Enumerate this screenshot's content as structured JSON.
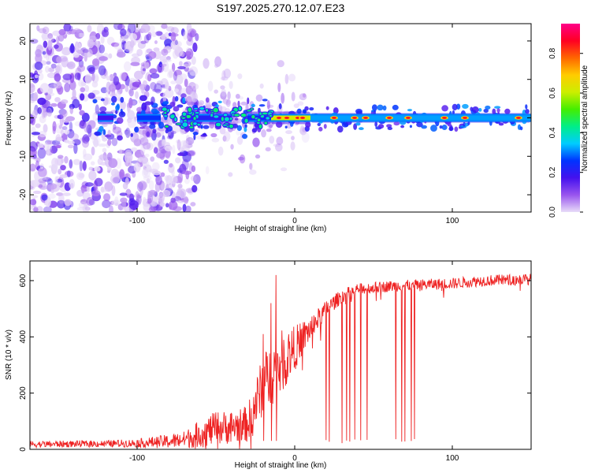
{
  "title": "S197.2025.270.12.07.E23",
  "chart_data": [
    {
      "type": "heatmap",
      "name": "spectrogram",
      "xlabel": "Height of straight line (km)",
      "ylabel": "Frequency (Hz)",
      "xlim": [
        -168,
        150
      ],
      "ylim": [
        -24.5,
        24.5
      ],
      "xticks": [
        -100,
        0,
        100
      ],
      "yticks": [
        -20,
        -10,
        0,
        10,
        20
      ],
      "colorbar": {
        "label": "Normalized spectral amplitude",
        "range": [
          0.0,
          0.95
        ],
        "ticks": [
          0.0,
          0.2,
          0.4,
          0.6,
          0.8
        ],
        "colors": [
          "#e8dcf8",
          "#9955ee",
          "#4411ee",
          "#0033ff",
          "#00ccff",
          "#00ee88",
          "#44ee00",
          "#ccee00",
          "#ffcc00",
          "#ff6600",
          "#ff0022",
          "#ff0088"
        ]
      },
      "band_segments": [
        {
          "x_from": -125,
          "x_to": -115,
          "amplitude": 0.25
        },
        {
          "x_from": -100,
          "x_to": -85,
          "amplitude": 0.35
        },
        {
          "x_from": -70,
          "x_to": -40,
          "amplitude": 0.3
        },
        {
          "x_from": -30,
          "x_to": -15,
          "amplitude": 0.35
        },
        {
          "x_from": -15,
          "x_to": 0,
          "amplitude": 0.85
        },
        {
          "x_from": 0,
          "x_to": 10,
          "amplitude": 0.85
        },
        {
          "x_from": 10,
          "x_to": 150,
          "amplitude": 0.45
        }
      ],
      "band_hotspots": [
        -10,
        -5,
        2,
        5,
        25,
        38,
        45,
        60,
        72,
        95,
        108,
        142
      ],
      "noise_region": {
        "x_from": -168,
        "x_to": -70,
        "freq_from": -24,
        "freq_to": 24
      }
    },
    {
      "type": "line",
      "name": "snr",
      "xlabel": "Height of straight line (km)",
      "ylabel": "SNR (10 * v/v)",
      "xlim": [
        -168,
        150
      ],
      "ylim": [
        0,
        670
      ],
      "xticks": [
        -100,
        0,
        100
      ],
      "yticks": [
        0,
        200,
        400,
        600
      ],
      "color": "#ee2222",
      "trend": {
        "x": [
          -168,
          -120,
          -100,
          -80,
          -70,
          -60,
          -50,
          -40,
          -30,
          -20,
          -10,
          0,
          10,
          20,
          30,
          40,
          60,
          80,
          100,
          120,
          150
        ],
        "y": [
          18,
          20,
          22,
          28,
          35,
          55,
          75,
          80,
          90,
          230,
          300,
          360,
          430,
          500,
          545,
          570,
          580,
          585,
          590,
          600,
          605
        ]
      },
      "noise_amplitude": [
        12,
        12,
        15,
        25,
        30,
        50,
        60,
        60,
        65,
        110,
        120,
        80,
        45,
        30,
        25,
        20,
        20,
        20,
        20,
        20,
        20
      ],
      "spikes": [
        {
          "x": -12,
          "y": 620
        },
        {
          "x": -15,
          "y": 520
        },
        {
          "x": -20,
          "y": 410
        }
      ],
      "dropouts": [
        20,
        22,
        30,
        33,
        35,
        38,
        42,
        46,
        64,
        68,
        70,
        74,
        76
      ]
    }
  ]
}
